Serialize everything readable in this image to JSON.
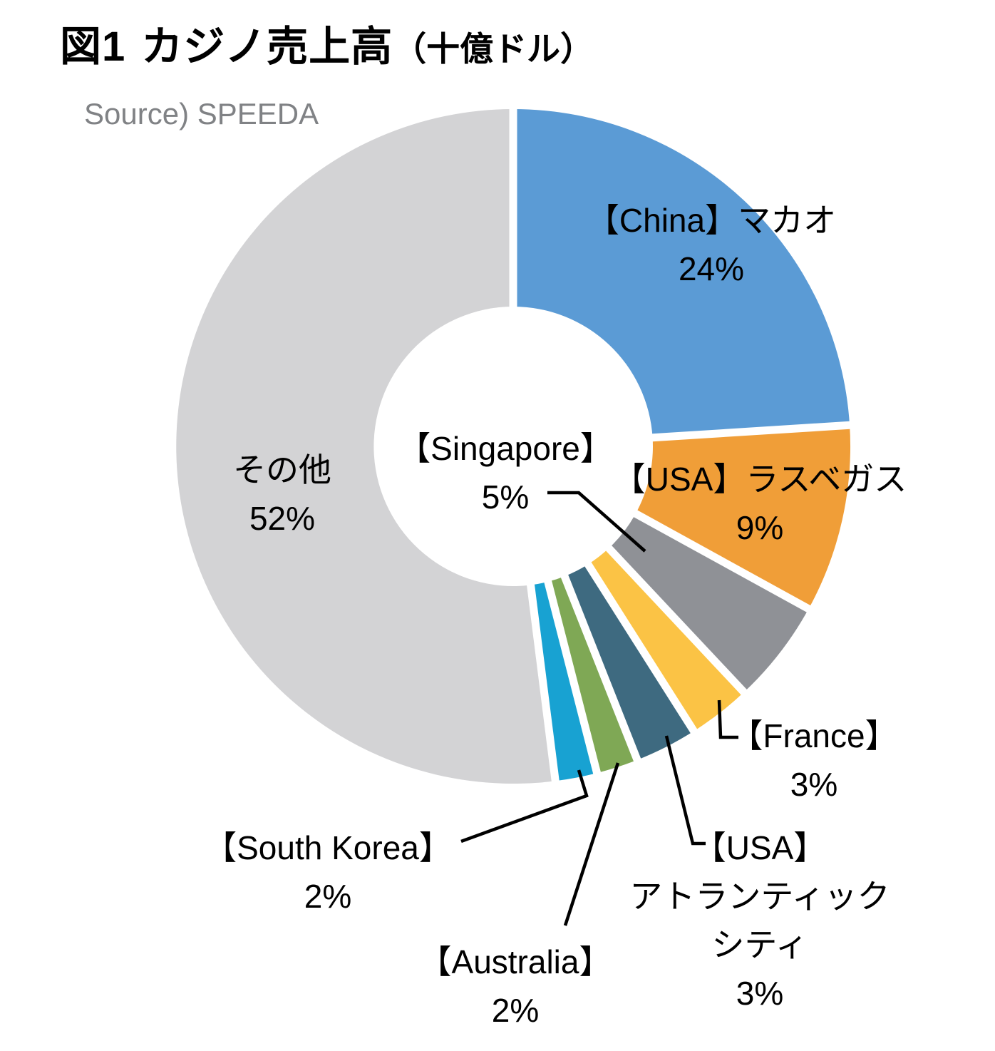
{
  "header": {
    "title_prefix": "図1",
    "title_main": "カジノ売上高",
    "title_unit": "（十億ドル）",
    "source": "Source) SPEEDA"
  },
  "chart_data": {
    "type": "pie",
    "subtype": "donut",
    "title": "図1 カジノ売上高（十億ドル）",
    "source": "Source) SPEEDA",
    "values_unit": "%",
    "total": 100,
    "direction": "clockwise",
    "start_angle_deg": 0,
    "inner_radius_ratio": 0.41,
    "legend": "none",
    "segments": [
      {
        "id": "china_macau",
        "label": "【China】マカオ",
        "label_lines": [
          "【China】マカオ",
          "24%"
        ],
        "value": 24,
        "pct_label": "24%",
        "color": "#5B9BD5",
        "label_placement": "inside"
      },
      {
        "id": "usa_las_vegas",
        "label": "【USA】ラスベガス",
        "label_lines": [
          "【USA】ラスベガス",
          "9%"
        ],
        "value": 9,
        "pct_label": "9%",
        "color": "#F09E38",
        "label_placement": "inside"
      },
      {
        "id": "singapore",
        "label": "【Singapore】",
        "label_lines": [
          "【Singapore】",
          "5%"
        ],
        "value": 5,
        "pct_label": "5%",
        "color": "#8F9196",
        "label_placement": "callout"
      },
      {
        "id": "france",
        "label": "【France】",
        "label_lines": [
          "【France】",
          "3%"
        ],
        "value": 3,
        "pct_label": "3%",
        "color": "#FBC345",
        "label_placement": "callout"
      },
      {
        "id": "usa_atlantic_city",
        "label": "【USA】アトランティックシティ",
        "label_lines": [
          "【USA】",
          "アトランティック",
          "シティ",
          "3%"
        ],
        "value": 3,
        "pct_label": "3%",
        "color": "#3E6A80",
        "label_placement": "callout"
      },
      {
        "id": "australia",
        "label": "【Australia】",
        "label_lines": [
          "【Australia】",
          "2%"
        ],
        "value": 2,
        "pct_label": "2%",
        "color": "#7FA855",
        "label_placement": "callout"
      },
      {
        "id": "south_korea",
        "label": "【South Korea】",
        "label_lines": [
          "【South Korea】",
          "2%"
        ],
        "value": 2,
        "pct_label": "2%",
        "color": "#18A2D2",
        "label_placement": "callout"
      },
      {
        "id": "other",
        "label": "その他",
        "label_lines": [
          "その他",
          "52%"
        ],
        "value": 52,
        "pct_label": "52%",
        "color": "#D3D3D5",
        "label_placement": "inside"
      }
    ]
  }
}
